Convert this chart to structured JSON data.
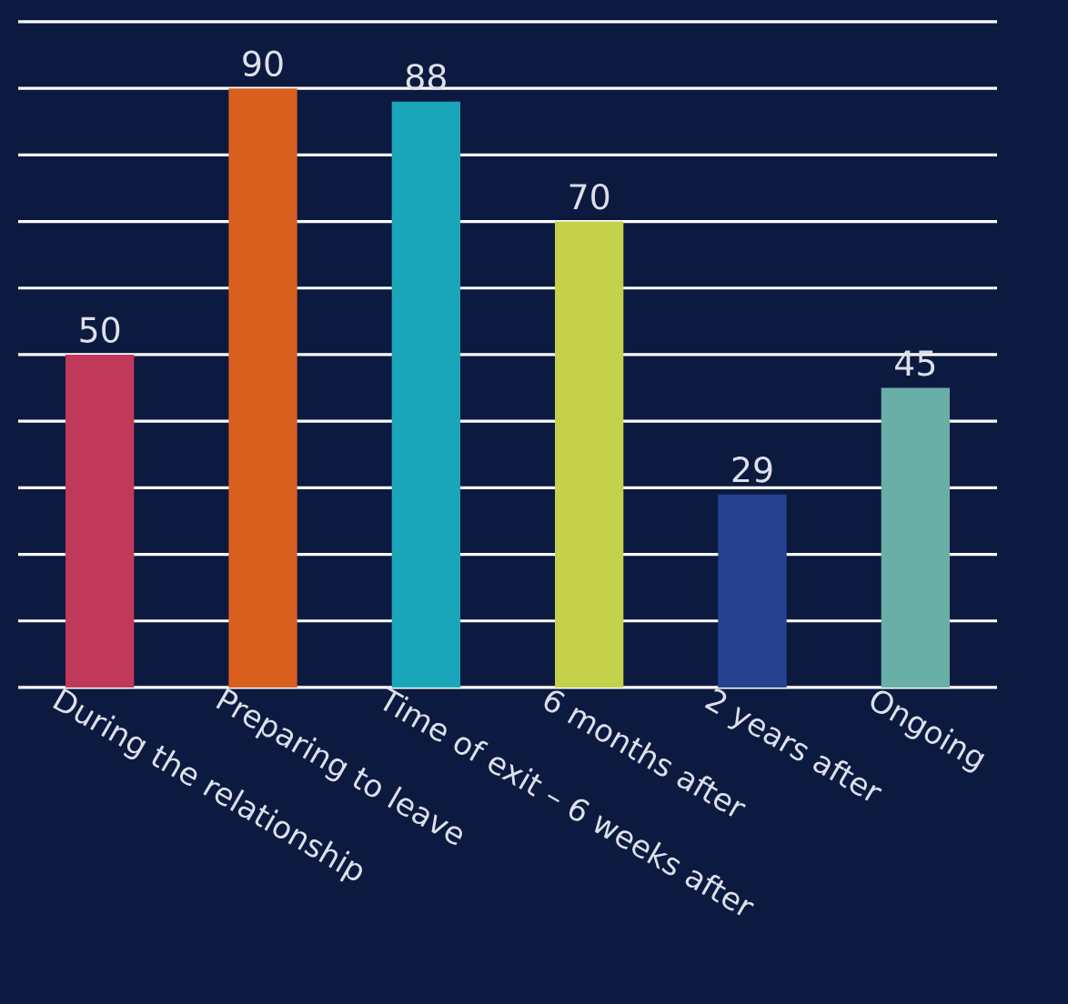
{
  "chart_data": {
    "type": "bar",
    "categories": [
      "During the relationship",
      "Preparing to leave",
      "Time of exit – 6 weeks after",
      "6 months after",
      "2 years after",
      "Ongoing"
    ],
    "values": [
      50,
      90,
      88,
      70,
      29,
      45
    ],
    "colors": [
      "#c0395a",
      "#d85f1e",
      "#1aa5b8",
      "#c5d14a",
      "#26418f",
      "#6aaea8"
    ],
    "ylim": [
      0,
      100
    ],
    "yticks": [
      {
        "value": 0,
        "label": null
      },
      {
        "value": 10,
        "label": null
      },
      {
        "value": 20,
        "label": null
      },
      {
        "value": 30,
        "label": null
      },
      {
        "value": 40,
        "label": null
      },
      {
        "value": 50,
        "label": null
      },
      {
        "value": 60,
        "label": null
      },
      {
        "value": 70,
        "label": null
      },
      {
        "value": 80,
        "label": null
      },
      {
        "value": 90,
        "label": null
      },
      {
        "value": 100,
        "label": null
      }
    ],
    "grid": "y",
    "tick_labels": "x",
    "data_labels": true
  }
}
